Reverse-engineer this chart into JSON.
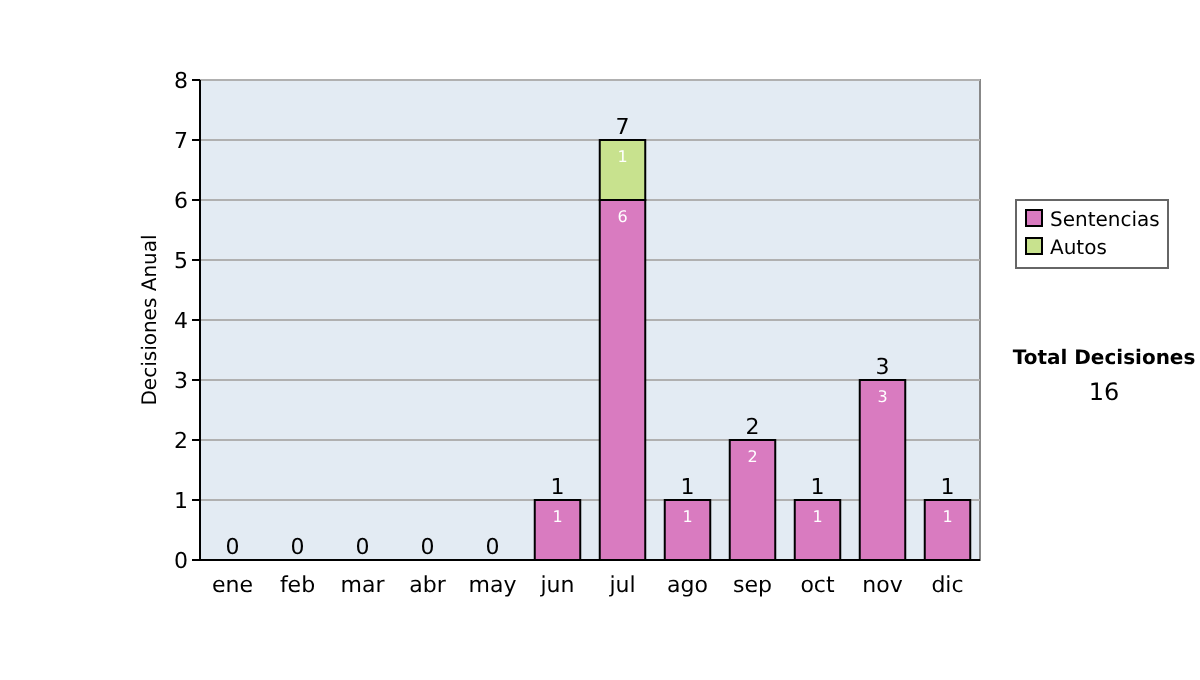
{
  "chart_data": {
    "type": "bar",
    "stacked": true,
    "ylabel": "Decisiones Anual",
    "categories": [
      "ene",
      "feb",
      "mar",
      "abr",
      "may",
      "jun",
      "jul",
      "ago",
      "sep",
      "oct",
      "nov",
      "dic"
    ],
    "series": [
      {
        "name": "Sentencias",
        "color": "#d97bc0",
        "values": [
          0,
          0,
          0,
          0,
          0,
          1,
          6,
          1,
          2,
          1,
          3,
          1
        ],
        "value_labels": [
          null,
          null,
          null,
          null,
          null,
          "1",
          "6",
          "1",
          "2",
          "1",
          "3",
          "1"
        ]
      },
      {
        "name": "Autos",
        "color": "#c8e28e",
        "values": [
          null,
          null,
          null,
          null,
          null,
          null,
          1,
          null,
          null,
          null,
          null,
          null
        ],
        "value_labels": [
          null,
          null,
          null,
          null,
          null,
          null,
          "1",
          null,
          null,
          null,
          null,
          null
        ]
      }
    ],
    "totals": [
      "0",
      "0",
      "0",
      "0",
      "0",
      "1",
      "7",
      "1",
      "2",
      "1",
      "3",
      "1"
    ],
    "ylim": [
      0,
      8
    ],
    "yticks": [
      0,
      1,
      2,
      3,
      4,
      5,
      6,
      7,
      8
    ],
    "grid": "y",
    "legend": "right",
    "annotations": [
      "Total Decisiones",
      "16"
    ]
  }
}
